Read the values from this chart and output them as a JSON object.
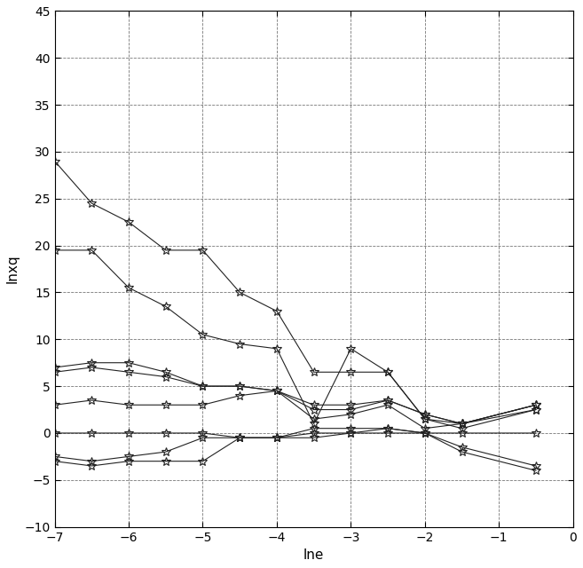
{
  "xlabel": "lne",
  "ylabel": "lnxq",
  "xlim": [
    -7,
    0
  ],
  "ylim": [
    -10,
    45
  ],
  "xticks": [
    -7,
    -6,
    -5,
    -4,
    -3,
    -2,
    -1,
    0
  ],
  "yticks": [
    -10,
    -5,
    0,
    5,
    10,
    15,
    20,
    25,
    30,
    35,
    40,
    45
  ],
  "line_color": "#222222",
  "marker": "*",
  "markersize": 7,
  "linewidth": 0.8,
  "lines": [
    {
      "x": [
        -7,
        -6.5,
        -6,
        -5.5,
        -5,
        -4.5,
        -4,
        -3.5,
        -3,
        -2.5,
        -2,
        -1.5,
        -0.5
      ],
      "y": [
        29.0,
        24.5,
        22.5,
        19.5,
        19.5,
        15.0,
        13.0,
        6.5,
        6.5,
        6.5,
        1.5,
        1.0,
        2.5
      ]
    },
    {
      "x": [
        -7,
        -6.5,
        -6,
        -5.5,
        -5,
        -4.5,
        -4,
        -3.5,
        -3,
        -2.5,
        -2,
        -1.5,
        -0.5
      ],
      "y": [
        19.5,
        19.5,
        15.5,
        13.5,
        10.5,
        9.5,
        9.0,
        1.0,
        9.0,
        6.5,
        1.5,
        0.5,
        2.5
      ]
    },
    {
      "x": [
        -7,
        -6.5,
        -6,
        -5.5,
        -5,
        -4.5,
        -4,
        -3.5,
        -3,
        -2.5,
        -2,
        -1.5,
        -0.5
      ],
      "y": [
        7.0,
        7.5,
        7.5,
        6.5,
        5.0,
        5.0,
        4.5,
        3.0,
        3.0,
        3.5,
        2.0,
        1.0,
        3.0
      ]
    },
    {
      "x": [
        -7,
        -6.5,
        -6,
        -5.5,
        -5,
        -4.5,
        -4,
        -3.5,
        -3,
        -2.5,
        -2,
        -1.5,
        -0.5
      ],
      "y": [
        6.5,
        7.0,
        6.5,
        6.0,
        5.0,
        5.0,
        4.5,
        2.5,
        2.5,
        3.5,
        2.0,
        1.0,
        3.0
      ]
    },
    {
      "x": [
        -7,
        -6.5,
        -6,
        -5.5,
        -5,
        -4.5,
        -4,
        -3.5,
        -3,
        -2.5,
        -2,
        -1.5,
        -0.5
      ],
      "y": [
        3.0,
        3.5,
        3.0,
        3.0,
        3.0,
        4.0,
        4.5,
        1.5,
        2.0,
        3.0,
        0.5,
        1.0,
        3.0
      ]
    },
    {
      "x": [
        -7,
        -6.5,
        -6,
        -5.5,
        -5,
        -4.5,
        -4,
        -3.5,
        -3,
        -2.5,
        -2,
        -1.5,
        -0.5
      ],
      "y": [
        0.0,
        0.0,
        0.0,
        0.0,
        0.0,
        -0.5,
        -0.5,
        0.5,
        0.5,
        0.5,
        0.0,
        0.0,
        0.0
      ]
    },
    {
      "x": [
        -7,
        -6.5,
        -6,
        -5.5,
        -5,
        -4.5,
        -4,
        -3.5,
        -3,
        -2.5,
        -2,
        -1.5,
        -0.5
      ],
      "y": [
        -2.5,
        -3.0,
        -2.5,
        -2.0,
        -0.5,
        -0.5,
        -0.5,
        0.0,
        0.0,
        0.0,
        0.0,
        -1.5,
        -3.5
      ]
    },
    {
      "x": [
        -7,
        -6.5,
        -6,
        -5.5,
        -5,
        -4.5,
        -4,
        -3.5,
        -3,
        -2.5,
        -2,
        -1.5,
        -0.5
      ],
      "y": [
        -3.0,
        -3.5,
        -3.0,
        -3.0,
        -3.0,
        -0.5,
        -0.5,
        -0.5,
        0.0,
        0.5,
        0.0,
        -2.0,
        -4.0
      ]
    }
  ],
  "background_color": "white",
  "grid_color": "#555555",
  "grid_linestyle": "--",
  "grid_alpha": 0.8,
  "xlabel_fontsize": 11,
  "ylabel_fontsize": 11,
  "tick_fontsize": 10
}
